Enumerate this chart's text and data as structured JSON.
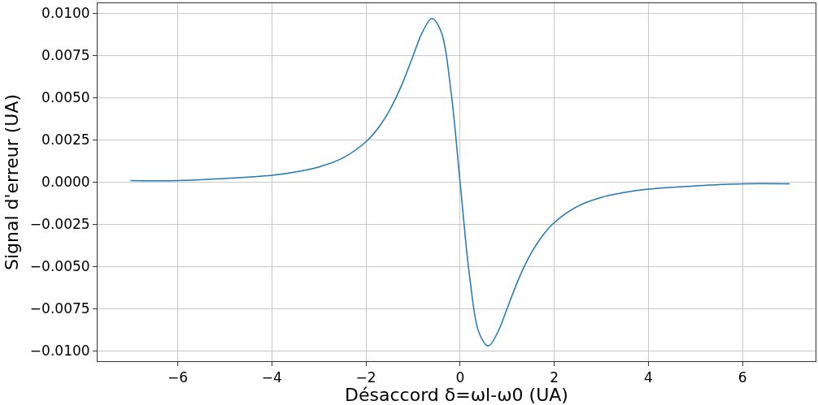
{
  "chart_data": {
    "type": "line",
    "xlabel": "Désaccord δ=ωl-ω0 (UA)",
    "ylabel": "Signal d'erreur (UA)",
    "x": [
      -7,
      -6,
      -5,
      -4,
      -3.5,
      -3,
      -2.5,
      -2,
      -1.75,
      -1.5,
      -1.25,
      -1,
      -0.8,
      -0.6,
      -0.4,
      -0.2,
      0,
      0.2,
      0.4,
      0.6,
      0.8,
      1,
      1.25,
      1.5,
      1.75,
      2,
      2.5,
      3,
      3.5,
      4,
      5,
      6,
      7
    ],
    "series": [
      {
        "color": "#1f77b4",
        "values": [
          0.0001,
          0.0001,
          0.00022,
          0.00041,
          0.0006,
          0.0009,
          0.00142,
          0.00239,
          0.00317,
          0.00425,
          0.00569,
          0.00748,
          0.00889,
          0.0097,
          0.00889,
          0.00553,
          0,
          -0.00553,
          -0.00889,
          -0.0097,
          -0.00889,
          -0.00748,
          -0.00569,
          -0.00425,
          -0.00317,
          -0.00239,
          -0.00142,
          -0.0009,
          -0.0006,
          -0.00041,
          -0.00022,
          -0.0001,
          -0.0001
        ]
      }
    ],
    "xlim": [
      -7.7,
      7.55
    ],
    "ylim": [
      -0.0106,
      0.0106
    ],
    "xticks": [
      {
        "value": -6,
        "label": "−6"
      },
      {
        "value": -4,
        "label": "−4"
      },
      {
        "value": -2,
        "label": "−2"
      },
      0,
      2,
      4,
      6
    ],
    "yticks": [
      {
        "value": -0.01,
        "label": "−0.0100"
      },
      {
        "value": -0.0075,
        "label": "−0.0075"
      },
      {
        "value": -0.005,
        "label": "−0.0050"
      },
      {
        "value": -0.0025,
        "label": "−0.0025"
      },
      {
        "value": 0,
        "label": "0.0000"
      },
      {
        "value": 0.0025,
        "label": "0.0025"
      },
      {
        "value": 0.005,
        "label": "0.0050"
      },
      {
        "value": 0.0075,
        "label": "0.0075"
      },
      {
        "value": 0.01,
        "label": "0.0100"
      }
    ],
    "grid": true,
    "marker": "none",
    "line_style": "solid"
  }
}
